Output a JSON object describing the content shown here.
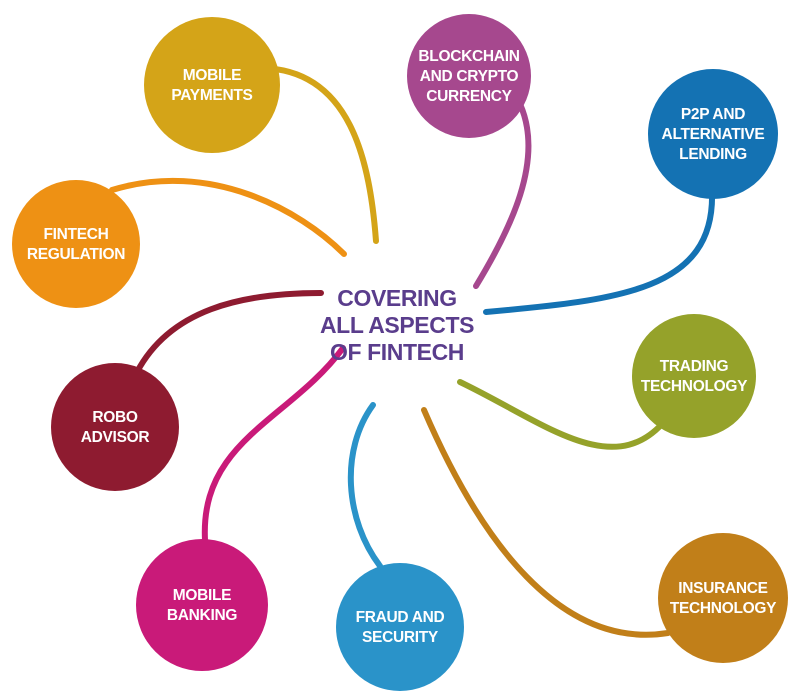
{
  "center": {
    "lines": [
      "COVERING",
      "ALL ASPECTS",
      "OF FINTECH"
    ],
    "color": "#5a3d8c"
  },
  "nodes": [
    {
      "id": "mobile-payments",
      "lines": [
        "MOBILE",
        "PAYMENTS"
      ],
      "color": "#d4a418"
    },
    {
      "id": "blockchain-crypto",
      "lines": [
        "BLOCKCHAIN",
        "AND CRYPTO",
        "CURRENCY"
      ],
      "color": "#a6488e"
    },
    {
      "id": "p2p-lending",
      "lines": [
        "P2P AND",
        "ALTERNATIVE",
        "LENDING"
      ],
      "color": "#1472b3"
    },
    {
      "id": "fintech-regulation",
      "lines": [
        "FINTECH",
        "REGULATION"
      ],
      "color": "#ee9114"
    },
    {
      "id": "trading-technology",
      "lines": [
        "TRADING",
        "TECHNOLOGY"
      ],
      "color": "#95a22a"
    },
    {
      "id": "robo-advisor",
      "lines": [
        "ROBO",
        "ADVISOR"
      ],
      "color": "#8e1b30"
    },
    {
      "id": "mobile-banking",
      "lines": [
        "MOBILE",
        "BANKING"
      ],
      "color": "#c91a79"
    },
    {
      "id": "fraud-security",
      "lines": [
        "FRAUD AND",
        "SECURITY"
      ],
      "color": "#2a93c9"
    },
    {
      "id": "insurance-technology",
      "lines": [
        "INSURANCE",
        "TECHNOLOGY"
      ],
      "color": "#c17f19"
    }
  ]
}
